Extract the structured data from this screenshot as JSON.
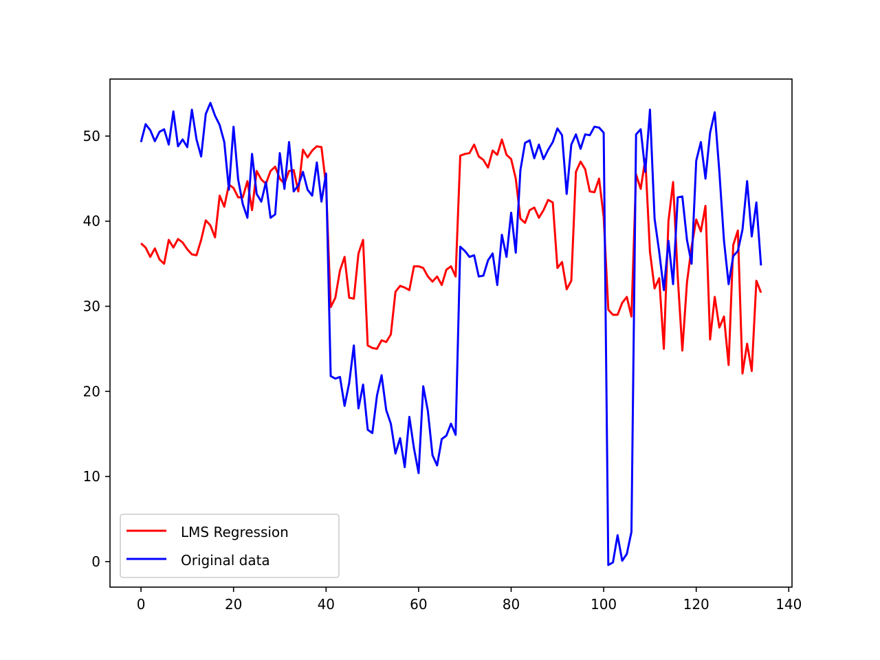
{
  "chart_data": {
    "type": "line",
    "title": "",
    "xlabel": "",
    "ylabel": "",
    "xlim": [
      -6.7,
      140.7
    ],
    "ylim": [
      -3,
      56.7
    ],
    "xticks": [
      0,
      20,
      40,
      60,
      80,
      100,
      120,
      140
    ],
    "yticks": [
      0,
      10,
      20,
      30,
      40,
      50
    ],
    "grid": false,
    "legend_position": "lower-left",
    "series": [
      {
        "name": "LMS Regression",
        "color": "#ff0000",
        "values": [
          37.4,
          36.9,
          35.8,
          36.8,
          35.5,
          35.0,
          37.8,
          36.9,
          37.9,
          37.5,
          36.7,
          36.1,
          36.0,
          37.8,
          40.1,
          39.5,
          38.1,
          43.0,
          41.7,
          44.3,
          43.9,
          42.8,
          42.8,
          44.7,
          41.3,
          45.9,
          44.9,
          44.4,
          45.9,
          46.4,
          45.0,
          44.4,
          45.9,
          46.0,
          43.5,
          48.4,
          47.5,
          48.3,
          48.8,
          48.7,
          44.2,
          29.9,
          31.0,
          34.2,
          35.8,
          31.0,
          30.9,
          36.2,
          37.8,
          25.4,
          25.1,
          25.0,
          26.0,
          25.8,
          26.7,
          31.7,
          32.4,
          32.2,
          31.9,
          34.7,
          34.7,
          34.5,
          33.5,
          32.9,
          33.5,
          32.5,
          34.3,
          34.7,
          33.5,
          47.7,
          47.9,
          48.0,
          49.0,
          47.6,
          47.2,
          46.3,
          48.3,
          47.8,
          49.6,
          47.8,
          47.3,
          45.0,
          40.3,
          39.8,
          41.3,
          41.6,
          40.4,
          41.3,
          42.5,
          42.2,
          34.5,
          35.2,
          32.0,
          33.0,
          45.8,
          47.0,
          46.1,
          43.5,
          43.4,
          45.0,
          40.5,
          29.6,
          29.0,
          29.0,
          30.4,
          31.1,
          28.8,
          45.5,
          43.8,
          47.3,
          36.4,
          32.1,
          33.3,
          25.0,
          40.0,
          44.6,
          33.5,
          24.8,
          32.8,
          37.0,
          40.2,
          38.8,
          41.8,
          26.1,
          31.1,
          27.5,
          28.8,
          23.1,
          37.2,
          38.9,
          22.1,
          25.6,
          22.4,
          33.0,
          31.6
        ]
      },
      {
        "name": "Original data",
        "color": "#0000ff",
        "values": [
          49.3,
          51.4,
          50.7,
          49.4,
          50.5,
          50.8,
          49.0,
          52.9,
          48.8,
          49.6,
          48.7,
          53.1,
          49.6,
          47.6,
          52.6,
          53.9,
          52.4,
          51.3,
          49.3,
          43.7,
          51.1,
          44.9,
          42.0,
          40.4,
          47.9,
          43.2,
          42.3,
          44.6,
          40.4,
          40.8,
          48.0,
          43.8,
          49.3,
          43.5,
          44.2,
          45.8,
          43.7,
          43.0,
          46.9,
          42.3,
          45.6,
          21.8,
          21.5,
          21.7,
          18.3,
          21.0,
          25.4,
          18.0,
          20.8,
          15.5,
          15.1,
          19.5,
          21.9,
          17.8,
          16.2,
          12.7,
          14.5,
          11.1,
          17.0,
          13.3,
          10.4,
          20.6,
          17.7,
          12.5,
          11.3,
          14.4,
          14.8,
          16.2,
          14.9,
          37.0,
          36.5,
          35.8,
          36.0,
          33.5,
          33.6,
          35.4,
          36.2,
          32.5,
          38.4,
          35.8,
          41.0,
          36.3,
          46.0,
          49.2,
          49.5,
          47.4,
          49.0,
          47.3,
          48.4,
          49.3,
          50.9,
          50.1,
          43.2,
          49.0,
          50.2,
          48.5,
          50.2,
          50.1,
          51.1,
          51.0,
          50.4,
          -0.4,
          -0.1,
          3.1,
          0.1,
          0.9,
          3.5,
          50.2,
          50.8,
          45.8,
          53.1,
          40.3,
          36.4,
          31.9,
          37.7,
          32.6,
          42.8,
          42.9,
          37.8,
          35.0,
          47.1,
          49.3,
          45.0,
          50.4,
          52.8,
          45.8,
          37.7,
          32.6,
          35.9,
          36.5,
          39.0,
          44.7,
          38.2,
          42.2,
          34.8
        ]
      }
    ]
  }
}
